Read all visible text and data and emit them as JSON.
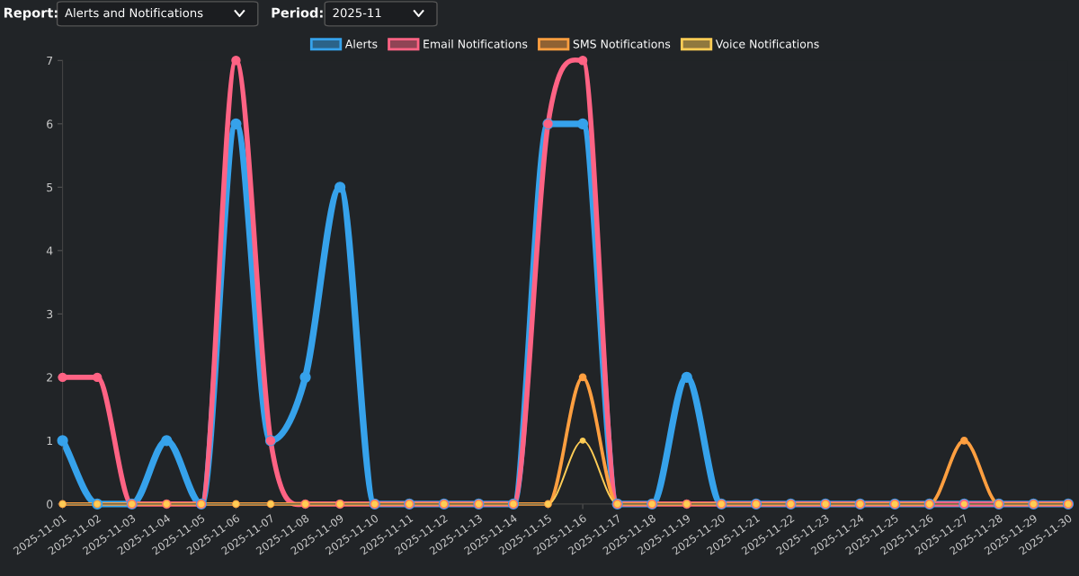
{
  "chart_data": {
    "type": "line",
    "annotations": [
      "Report:",
      "Alerts and Notifications",
      "Period:",
      "2025-11"
    ],
    "categories": [
      "2025-11-01",
      "2025-11-02",
      "2025-11-03",
      "2025-11-04",
      "2025-11-05",
      "2025-11-06",
      "2025-11-07",
      "2025-11-08",
      "2025-11-09",
      "2025-11-10",
      "2025-11-11",
      "2025-11-12",
      "2025-11-13",
      "2025-11-14",
      "2025-11-15",
      "2025-11-16",
      "2025-11-17",
      "2025-11-18",
      "2025-11-19",
      "2025-11-20",
      "2025-11-21",
      "2025-11-22",
      "2025-11-23",
      "2025-11-24",
      "2025-11-25",
      "2025-11-26",
      "2025-11-27",
      "2025-11-28",
      "2025-11-29",
      "2025-11-30"
    ],
    "series": [
      {
        "name": "Alerts",
        "color": "#36a2eb",
        "values": [
          1,
          0,
          0,
          1,
          0,
          6,
          1,
          2,
          5,
          0,
          0,
          0,
          0,
          0,
          6,
          6,
          0,
          0,
          2,
          0,
          0,
          0,
          0,
          0,
          0,
          0,
          0,
          0,
          0,
          0
        ]
      },
      {
        "name": "Email Notifications",
        "color": "#ff6384",
        "values": [
          2,
          2,
          0,
          0,
          0,
          7,
          1,
          0,
          0,
          0,
          0,
          0,
          0,
          0,
          6,
          7,
          0,
          0,
          0,
          0,
          0,
          0,
          0,
          0,
          0,
          0,
          0,
          0,
          0,
          0
        ]
      },
      {
        "name": "SMS Notifications",
        "color": "#ff9f40",
        "values": [
          0,
          0,
          0,
          0,
          0,
          0,
          0,
          0,
          0,
          0,
          0,
          0,
          0,
          0,
          0,
          2,
          0,
          0,
          0,
          0,
          0,
          0,
          0,
          0,
          0,
          0,
          1,
          0,
          0,
          0
        ]
      },
      {
        "name": "Voice Notifications",
        "color": "#ffcd56",
        "values": [
          0,
          0,
          0,
          0,
          0,
          0,
          0,
          0,
          0,
          0,
          0,
          0,
          0,
          0,
          0,
          1,
          0,
          0,
          0,
          0,
          0,
          0,
          0,
          0,
          0,
          0,
          0,
          0,
          0,
          0
        ]
      }
    ],
    "ylim": [
      0,
      7
    ],
    "yticks": [
      0,
      1,
      2,
      3,
      4,
      5,
      6,
      7
    ],
    "grid": false,
    "legend": "top",
    "marker": "circle",
    "line_style": "solid"
  }
}
